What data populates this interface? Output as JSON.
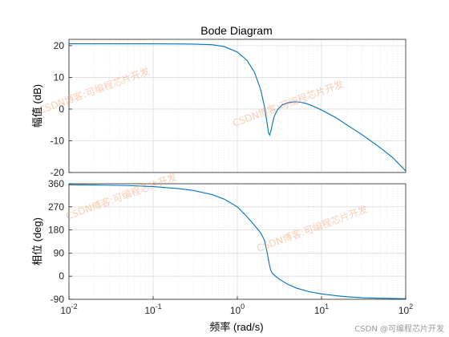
{
  "chart_data": [
    {
      "type": "line",
      "title": "Bode Diagram",
      "ylabel": "幅值 (dB)",
      "xscale": "log",
      "xlim": [
        0.01,
        100
      ],
      "ylim": [
        -20,
        22
      ],
      "yticks": [
        "20",
        "10",
        "0",
        "-10",
        "-20"
      ],
      "grid": true,
      "line_color": "#0072bd",
      "series": [
        {
          "x": [
            0.01,
            0.1,
            0.3,
            0.5,
            0.7,
            1.0,
            1.3,
            1.6,
            1.9,
            2.1,
            2.25,
            2.35,
            2.42,
            2.5,
            2.6,
            2.75,
            3.0,
            3.4,
            4.0,
            4.8,
            5.5,
            6.5,
            8,
            10,
            15,
            20,
            30,
            50,
            70,
            100
          ],
          "y": [
            20.6,
            20.6,
            20.5,
            20.3,
            19.7,
            18.0,
            15.4,
            11.6,
            6.0,
            0.8,
            -4.2,
            -7.5,
            -8.2,
            -7.0,
            -4.8,
            -2.2,
            -0.2,
            1.3,
            2.0,
            2.3,
            2.2,
            1.8,
            0.9,
            -0.3,
            -2.8,
            -5.0,
            -8.0,
            -12.2,
            -15.3,
            -19.5
          ]
        }
      ]
    },
    {
      "type": "line",
      "title": "",
      "ylabel": "相位 (deg)",
      "xlabel": "频率  (rad/s)",
      "xscale": "log",
      "xlim": [
        0.01,
        100
      ],
      "ylim": [
        -90,
        360
      ],
      "yticks": [
        "360",
        "270",
        "180",
        "90",
        "0",
        "-90"
      ],
      "xticks": [
        "10",
        "10",
        "10",
        "10",
        "10"
      ],
      "xtick_exponents": [
        "-2",
        "-1",
        "0",
        "1",
        "2"
      ],
      "grid": true,
      "line_color": "#0072bd",
      "series": [
        {
          "x": [
            0.01,
            0.02,
            0.05,
            0.1,
            0.2,
            0.3,
            0.5,
            0.7,
            1.0,
            1.3,
            1.6,
            1.9,
            2.1,
            2.25,
            2.35,
            2.42,
            2.5,
            2.6,
            2.8,
            3.1,
            3.5,
            4.0,
            5.0,
            7.0,
            10,
            15,
            20,
            30,
            50,
            100
          ],
          "y": [
            356,
            355,
            353,
            349,
            341,
            334,
            318,
            300,
            270,
            232,
            198,
            168,
            140,
            95,
            62,
            40,
            22,
            12,
            2,
            -10,
            -21,
            -32,
            -46,
            -60,
            -69,
            -76,
            -80,
            -84,
            -86,
            -88
          ]
        }
      ]
    }
  ],
  "watermarks": [
    "CSDN博客:可编程芯片开发",
    "CSDN博客:可编程芯片开发",
    "CSDN博客:可编程芯片开发",
    "CSDN博客:可编程芯片开发"
  ],
  "credit": "CSDN @可编程芯片开发"
}
